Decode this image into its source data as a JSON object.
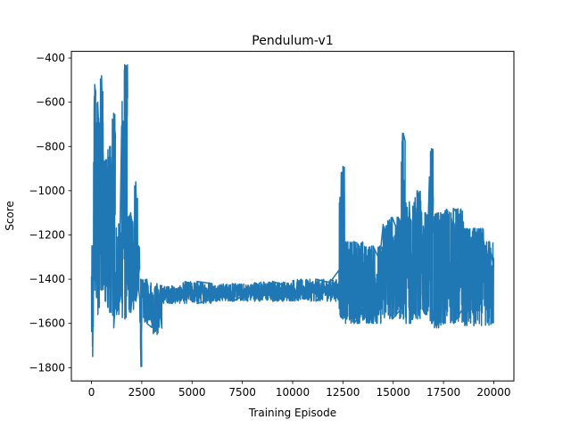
{
  "chart_data": {
    "type": "line",
    "title": "Pendulum-v1",
    "xlabel": "Training Episode",
    "ylabel": "Score",
    "xlim": [
      -1000,
      21000
    ],
    "ylim": [
      -1860,
      -370
    ],
    "xticks": [
      0,
      2500,
      5000,
      7500,
      10000,
      12500,
      15000,
      17500,
      20000
    ],
    "yticks": [
      -1800,
      -1600,
      -1400,
      -1200,
      -1000,
      -800,
      -600,
      -400
    ],
    "grid": false,
    "legend": "none",
    "series": [
      {
        "color": "#1f77b4",
        "segments": [
          {
            "x0": 0,
            "x1": 100,
            "lo": -1750,
            "hi": -1250
          },
          {
            "x0": 100,
            "x1": 220,
            "lo": -1450,
            "hi": -520
          },
          {
            "x0": 220,
            "x1": 400,
            "lo": -1560,
            "hi": -600
          },
          {
            "x0": 400,
            "x1": 600,
            "lo": -1450,
            "hi": -480
          },
          {
            "x0": 600,
            "x1": 800,
            "lo": -1500,
            "hi": -860
          },
          {
            "x0": 800,
            "x1": 1000,
            "lo": -1550,
            "hi": -800
          },
          {
            "x0": 1000,
            "x1": 1200,
            "lo": -1620,
            "hi": -650
          },
          {
            "x0": 1200,
            "x1": 1500,
            "lo": -1560,
            "hi": -1150
          },
          {
            "x0": 1500,
            "x1": 1800,
            "lo": -1580,
            "hi": -430
          },
          {
            "x0": 1800,
            "x1": 2100,
            "lo": -1550,
            "hi": -1100
          },
          {
            "x0": 2100,
            "x1": 2300,
            "lo": -1500,
            "hi": -960
          },
          {
            "x0": 2300,
            "x1": 2400,
            "lo": -1450,
            "hi": -1250
          },
          {
            "x0": 2400,
            "x1": 2500,
            "lo": -1795,
            "hi": -1400
          },
          {
            "x0": 2500,
            "x1": 3000,
            "lo": -1600,
            "hi": -1400
          },
          {
            "x0": 3000,
            "x1": 3500,
            "lo": -1650,
            "hi": -1420
          },
          {
            "x0": 3500,
            "x1": 4500,
            "lo": -1510,
            "hi": -1430
          },
          {
            "x0": 4500,
            "x1": 6000,
            "lo": -1510,
            "hi": -1410
          },
          {
            "x0": 6000,
            "x1": 8000,
            "lo": -1500,
            "hi": -1420
          },
          {
            "x0": 8000,
            "x1": 10000,
            "lo": -1500,
            "hi": -1410
          },
          {
            "x0": 10000,
            "x1": 12300,
            "lo": -1500,
            "hi": -1400
          },
          {
            "x0": 12300,
            "x1": 12400,
            "lo": -1560,
            "hi": -1030
          },
          {
            "x0": 12400,
            "x1": 12600,
            "lo": -1580,
            "hi": -890
          },
          {
            "x0": 12600,
            "x1": 13500,
            "lo": -1600,
            "hi": -1230
          },
          {
            "x0": 13500,
            "x1": 14500,
            "lo": -1600,
            "hi": -1250
          },
          {
            "x0": 14500,
            "x1": 15400,
            "lo": -1580,
            "hi": -1120
          },
          {
            "x0": 15400,
            "x1": 15600,
            "lo": -1580,
            "hi": -740
          },
          {
            "x0": 15600,
            "x1": 16000,
            "lo": -1600,
            "hi": -1050
          },
          {
            "x0": 16000,
            "x1": 16400,
            "lo": -1580,
            "hi": -1000
          },
          {
            "x0": 16400,
            "x1": 16800,
            "lo": -1560,
            "hi": -1100
          },
          {
            "x0": 16800,
            "x1": 17000,
            "lo": -1600,
            "hi": -810
          },
          {
            "x0": 17000,
            "x1": 17500,
            "lo": -1620,
            "hi": -1100
          },
          {
            "x0": 17500,
            "x1": 18500,
            "lo": -1600,
            "hi": -1080
          },
          {
            "x0": 18500,
            "x1": 19500,
            "lo": -1610,
            "hi": -1170
          },
          {
            "x0": 19500,
            "x1": 20000,
            "lo": -1610,
            "hi": -1230
          }
        ]
      }
    ]
  }
}
